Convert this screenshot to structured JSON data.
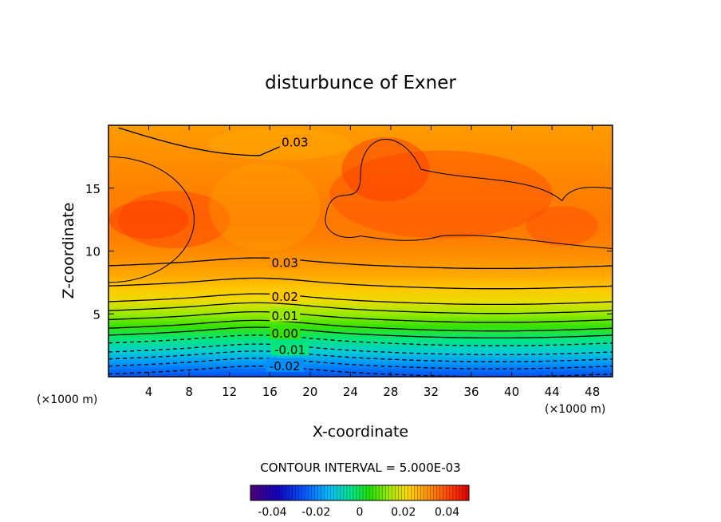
{
  "chart_data": {
    "type": "contour",
    "title": "disturbunce of Exner",
    "xlabel": "X-coordinate",
    "ylabel": "Z-coordinate",
    "x_unit": "(×1000 m)",
    "z_unit": "(×1000 m)",
    "xlim": [
      0,
      50
    ],
    "ylim": [
      0,
      20
    ],
    "x_ticks": [
      4,
      8,
      12,
      16,
      20,
      24,
      28,
      32,
      36,
      40,
      44,
      48
    ],
    "y_ticks": [
      5,
      10,
      15
    ],
    "contour_interval_text": "CONTOUR INTERVAL = 5.000E-03",
    "contour_interval": 0.005,
    "contour_labels": [
      {
        "text": "0.03",
        "x": 18.5,
        "z": 18.7
      },
      {
        "text": "0.03",
        "x": 17.5,
        "z": 9.1
      },
      {
        "text": "0.02",
        "x": 17.5,
        "z": 6.4
      },
      {
        "text": "0.01",
        "x": 17.5,
        "z": 4.9
      },
      {
        "text": "0.00",
        "x": 17.5,
        "z": 3.5
      },
      {
        "text": "-0.01",
        "x": 18.0,
        "z": 2.2
      },
      {
        "text": "-0.02",
        "x": 17.5,
        "z": 0.9
      }
    ],
    "profile": [
      {
        "z": 0.0,
        "value": -0.027
      },
      {
        "z": 1.0,
        "value": -0.019
      },
      {
        "z": 2.0,
        "value": -0.01
      },
      {
        "z": 3.0,
        "value": -0.003
      },
      {
        "z": 4.0,
        "value": 0.006
      },
      {
        "z": 5.0,
        "value": 0.013
      },
      {
        "z": 6.0,
        "value": 0.02
      },
      {
        "z": 7.0,
        "value": 0.024
      },
      {
        "z": 8.0,
        "value": 0.028
      },
      {
        "z": 9.5,
        "value": 0.0315
      },
      {
        "z": 11.0,
        "value": 0.0338
      },
      {
        "z": 12.5,
        "value": 0.0345
      },
      {
        "z": 14.0,
        "value": 0.0338
      },
      {
        "z": 16.0,
        "value": 0.0325
      },
      {
        "z": 18.0,
        "value": 0.0312
      },
      {
        "z": 20.0,
        "value": 0.03
      }
    ],
    "colorbar": {
      "min": -0.05,
      "max": 0.05,
      "ticks": [
        {
          "value": -0.04,
          "label": "-0.04"
        },
        {
          "value": -0.02,
          "label": "-0.02"
        },
        {
          "value": 0,
          "label": "0"
        },
        {
          "value": 0.02,
          "label": "0.02"
        },
        {
          "value": 0.04,
          "label": "0.04"
        }
      ]
    }
  }
}
